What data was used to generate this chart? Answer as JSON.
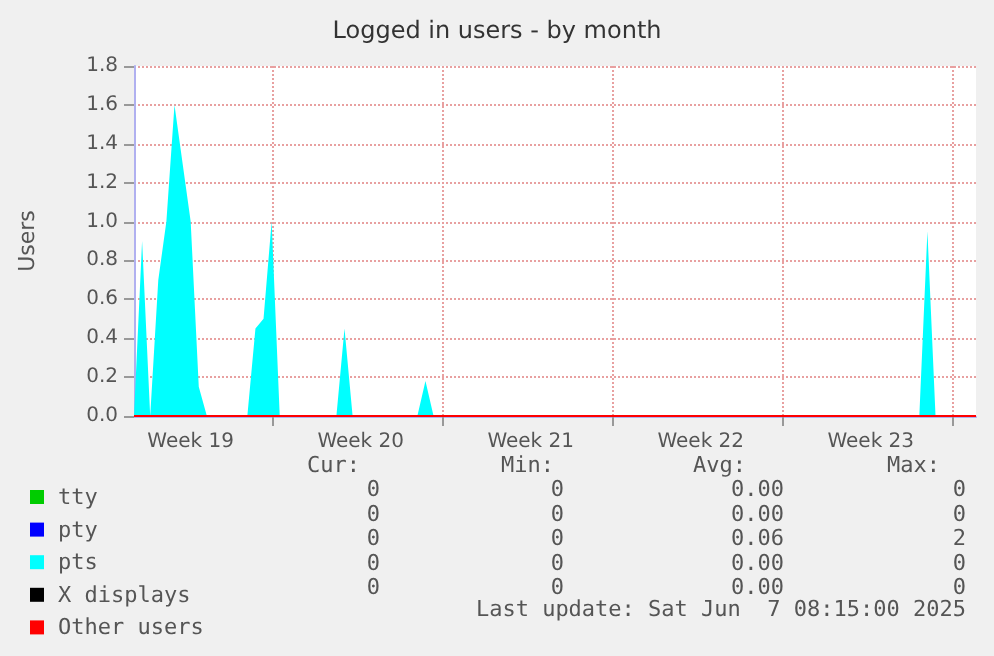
{
  "chart_data": {
    "type": "area",
    "title": "Logged in users - by month",
    "ylabel": "Users",
    "categories": [
      null,
      null,
      null,
      null,
      null,
      null,
      null,
      "Week 19",
      null,
      null,
      null,
      null,
      null,
      null,
      null,
      null,
      null,
      null,
      null,
      null,
      null,
      null,
      null,
      null,
      null,
      null,
      null,
      null,
      "Week 20",
      null,
      null,
      null,
      null,
      null,
      null,
      null,
      null,
      null,
      null,
      null,
      null,
      null,
      null,
      null,
      null,
      null,
      null,
      null,
      null,
      "Week 21",
      null,
      null,
      null,
      null,
      null,
      null,
      null,
      null,
      null,
      null,
      null,
      null,
      null,
      null,
      null,
      null,
      null,
      null,
      null,
      null,
      "Week 22",
      null,
      null,
      null,
      null,
      null,
      null,
      null,
      null,
      null,
      null,
      null,
      null,
      null,
      null,
      null,
      null,
      null,
      null,
      null,
      null,
      "Week 23",
      null,
      null,
      null,
      null,
      null,
      null,
      null,
      null,
      null,
      null,
      null,
      null,
      null
    ],
    "ylim": [
      0,
      1.8
    ],
    "yticks": [
      {
        "value": 0,
        "label": "0.0"
      },
      {
        "value": 0.2,
        "label": "0.2"
      },
      {
        "value": 0.4,
        "label": "0.4"
      },
      {
        "value": 0.6,
        "label": "0.6"
      },
      {
        "value": 0.8,
        "label": "0.8"
      },
      {
        "value": 1,
        "label": "1.0"
      },
      {
        "value": 1.2,
        "label": "1.2"
      },
      {
        "value": 1.4,
        "label": "1.4"
      },
      {
        "value": 1.6,
        "label": "1.6"
      },
      {
        "value": 1.8,
        "label": "1.8"
      }
    ],
    "grid": true,
    "legend": "bottom left",
    "marker": "none",
    "series": [
      {
        "name": "tty",
        "color": "#00cc00",
        "type": "line",
        "values": [
          null,
          null,
          null,
          null,
          null,
          null,
          null,
          null,
          null,
          null,
          null,
          null,
          null,
          null,
          null,
          null,
          null,
          null,
          null,
          null,
          null,
          null,
          null,
          null,
          null,
          null,
          null,
          null,
          null,
          null,
          null,
          null,
          null,
          null,
          null,
          null,
          null,
          null,
          null,
          null,
          null,
          null,
          null,
          null,
          null,
          null,
          null,
          null,
          null,
          null,
          null,
          null,
          null,
          null,
          null,
          null,
          null,
          null,
          null,
          null,
          null,
          null,
          null,
          null,
          null,
          null,
          null,
          null,
          null,
          null,
          null,
          null,
          null,
          null,
          null,
          null,
          null,
          null,
          null,
          null,
          null,
          null,
          null,
          null,
          null,
          null,
          null,
          null,
          null,
          null,
          null,
          null,
          null,
          null,
          null,
          null,
          null,
          null,
          null,
          null,
          null,
          null,
          null,
          null,
          null
        ]
      },
      {
        "name": "pty",
        "color": "#0000ff",
        "type": "line",
        "values": [
          null,
          null,
          null,
          null,
          null,
          null,
          null,
          null,
          null,
          null,
          null,
          null,
          null,
          null,
          null,
          null,
          null,
          null,
          null,
          null,
          null,
          null,
          null,
          null,
          null,
          null,
          null,
          null,
          null,
          null,
          null,
          null,
          null,
          null,
          null,
          null,
          null,
          null,
          null,
          null,
          null,
          null,
          null,
          null,
          null,
          null,
          null,
          null,
          null,
          null,
          null,
          null,
          null,
          null,
          null,
          null,
          null,
          null,
          null,
          null,
          null,
          null,
          null,
          null,
          null,
          null,
          null,
          null,
          null,
          null,
          null,
          null,
          null,
          null,
          null,
          null,
          null,
          null,
          null,
          null,
          null,
          null,
          null,
          null,
          null,
          null,
          null,
          null,
          null,
          null,
          null,
          null,
          null,
          null,
          null,
          null,
          null,
          null,
          null,
          null,
          null,
          null,
          null,
          null,
          null
        ]
      },
      {
        "name": "pts",
        "color": "#00ffff",
        "values": [
          0,
          0.9,
          0,
          0.7,
          1,
          1.6,
          1.3,
          1,
          0.15,
          0,
          0,
          0,
          0,
          0,
          0,
          0.45,
          0.5,
          1,
          0,
          0,
          0,
          0,
          0,
          0,
          0,
          0,
          0.45,
          0,
          0,
          0,
          0,
          0,
          0,
          0,
          0,
          0,
          0.18,
          0,
          0,
          0,
          0,
          0,
          0,
          0,
          0,
          0,
          0,
          0,
          0,
          0,
          0,
          0,
          0,
          0,
          0,
          0,
          0,
          0,
          0,
          0,
          0,
          0,
          0,
          0,
          0,
          0,
          0,
          0,
          0,
          0,
          0,
          0,
          0,
          0,
          0,
          0,
          0,
          0,
          0,
          0,
          0,
          0,
          0,
          0,
          0,
          0,
          0,
          0,
          0,
          0,
          0,
          0,
          0,
          0,
          0,
          0,
          0,
          0,
          0.95,
          0,
          0,
          0,
          0,
          0,
          0
        ]
      },
      {
        "name": "X displays",
        "color": "#000000",
        "type": "line",
        "values": [
          null,
          null,
          null,
          null,
          null,
          null,
          null,
          null,
          null,
          null,
          null,
          null,
          null,
          null,
          null,
          null,
          null,
          null,
          null,
          null,
          null,
          null,
          null,
          null,
          null,
          null,
          null,
          null,
          null,
          null,
          null,
          null,
          null,
          null,
          null,
          null,
          null,
          null,
          null,
          null,
          null,
          null,
          null,
          null,
          null,
          null,
          null,
          null,
          null,
          null,
          null,
          null,
          null,
          null,
          null,
          null,
          null,
          null,
          null,
          null,
          null,
          null,
          null,
          null,
          null,
          null,
          null,
          null,
          null,
          null,
          null,
          null,
          null,
          null,
          null,
          null,
          null,
          null,
          null,
          null,
          null,
          null,
          null,
          null,
          null,
          null,
          null,
          null,
          null,
          null,
          null,
          null,
          null,
          null,
          null,
          null,
          null,
          null,
          null,
          null,
          null,
          null,
          null,
          null,
          null
        ]
      },
      {
        "name": "Other users",
        "color": "#ff0000",
        "type": "line",
        "values": [
          0,
          0,
          0,
          0,
          0,
          0,
          0,
          0,
          0,
          0,
          0,
          0,
          0,
          0,
          0,
          0,
          0,
          0,
          0,
          0,
          0,
          0,
          0,
          0,
          0,
          0,
          0,
          0,
          0,
          0,
          0,
          0,
          0,
          0,
          0,
          0,
          0,
          0,
          0,
          0,
          0,
          0,
          0,
          0,
          0,
          0,
          0,
          0,
          0,
          0,
          0,
          0,
          0,
          0,
          0,
          0,
          0,
          0,
          0,
          0,
          0,
          0,
          0,
          0,
          0,
          0,
          0,
          0,
          0,
          0,
          0,
          0,
          0,
          0,
          0,
          0,
          0,
          0,
          0,
          0,
          0,
          0,
          0,
          0,
          0,
          0,
          0,
          0,
          0,
          0,
          0,
          0,
          0,
          0,
          0,
          0,
          0,
          0,
          0,
          0,
          0,
          0,
          0,
          0,
          0
        ]
      }
    ],
    "annotations": [
      "Cur:",
      "Min:",
      "Avg:",
      "Max:",
      "0",
      "0",
      "0.00",
      "0",
      "0",
      "0",
      "0.00",
      "0",
      "0",
      "0",
      "0.06",
      "2",
      "0",
      "0",
      "0.00",
      "0",
      "0",
      "0",
      "0.00",
      "0",
      "Last update: Sat Jun  7 08:15:00 2025"
    ]
  }
}
